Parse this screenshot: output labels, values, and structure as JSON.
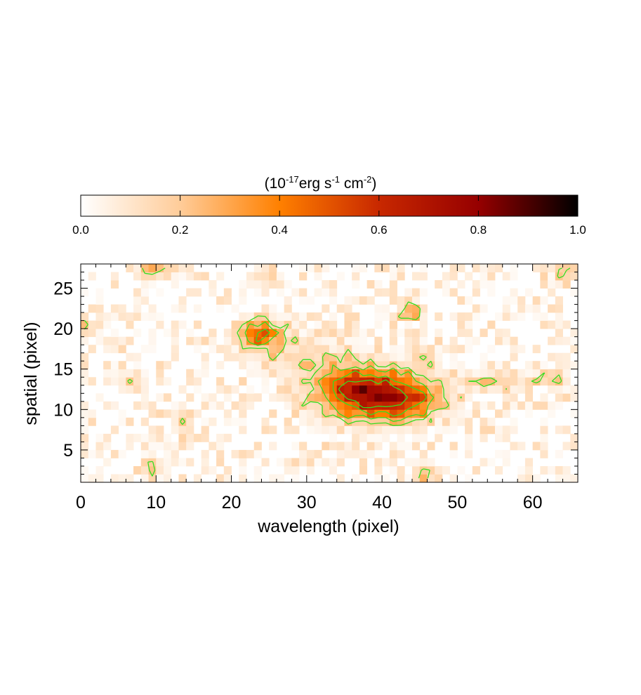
{
  "chart_data": {
    "type": "heatmap",
    "colorbar": {
      "title_parts": [
        "(10",
        "-17",
        "erg s",
        "-1",
        " cm",
        "-2",
        ")"
      ],
      "ticks": [
        "0.0",
        "0.2",
        "0.4",
        "0.6",
        "0.8",
        "1.0"
      ],
      "range": [
        0,
        1
      ],
      "colormap": [
        "#ffffff",
        "#ffcc99",
        "#ff8000",
        "#c82800",
        "#960000",
        "#000000"
      ]
    },
    "xlabel": "wavelength (pixel)",
    "ylabel": "spatial (pixel)",
    "xlim": [
      0,
      66
    ],
    "ylim": [
      1,
      28
    ],
    "xticks": [
      "0",
      "10",
      "20",
      "30",
      "40",
      "50",
      "60"
    ],
    "yticks": [
      "5",
      "10",
      "15",
      "20",
      "25"
    ],
    "contour_color": "#33dd22",
    "contour_levels": [
      0.18,
      0.3,
      0.45,
      0.6
    ],
    "sources": [
      {
        "x": 39.5,
        "y": 11.8,
        "sx": 4.8,
        "sy": 2.0,
        "amp": 0.72
      },
      {
        "x": 35.0,
        "y": 13.6,
        "sx": 2.6,
        "sy": 1.4,
        "amp": 0.22
      },
      {
        "x": 43.5,
        "y": 10.5,
        "sx": 2.5,
        "sy": 1.4,
        "amp": 0.12
      },
      {
        "x": 23.5,
        "y": 19.3,
        "sx": 2.0,
        "sy": 1.2,
        "amp": 0.42
      },
      {
        "x": 29.0,
        "y": 16.5,
        "sx": 4.0,
        "sy": 1.8,
        "amp": 0.12
      },
      {
        "x": 44.0,
        "y": 22.2,
        "sx": 1.0,
        "sy": 0.8,
        "amp": 0.32
      },
      {
        "x": 56.0,
        "y": 13.5,
        "sx": 2.5,
        "sy": 0.8,
        "amp": 0.16
      },
      {
        "x": 62.5,
        "y": 13.8,
        "sx": 1.5,
        "sy": 0.8,
        "amp": 0.14
      },
      {
        "x": 9.5,
        "y": 27.0,
        "sx": 1.5,
        "sy": 0.8,
        "amp": 0.18
      },
      {
        "x": 45.5,
        "y": 16.5,
        "sx": 1.0,
        "sy": 0.7,
        "amp": 0.2
      },
      {
        "x": 45.5,
        "y": 2.0,
        "sx": 0.9,
        "sy": 0.8,
        "amp": 0.22
      },
      {
        "x": 13.5,
        "y": 8.5,
        "sx": 0.8,
        "sy": 1.0,
        "amp": 0.2
      },
      {
        "x": 9.5,
        "y": 3.0,
        "sx": 1.0,
        "sy": 0.9,
        "amp": 0.18
      },
      {
        "x": 64.5,
        "y": 27.2,
        "sx": 1.3,
        "sy": 0.8,
        "amp": 0.22
      },
      {
        "x": 24.5,
        "y": 26.5,
        "sx": 1.0,
        "sy": 0.8,
        "amp": 0.14
      },
      {
        "x": 0.8,
        "y": 20.0,
        "sx": 0.8,
        "sy": 0.8,
        "amp": 0.16
      },
      {
        "x": 6.5,
        "y": 13.5,
        "sx": 1.2,
        "sy": 0.8,
        "amp": 0.12
      }
    ]
  }
}
